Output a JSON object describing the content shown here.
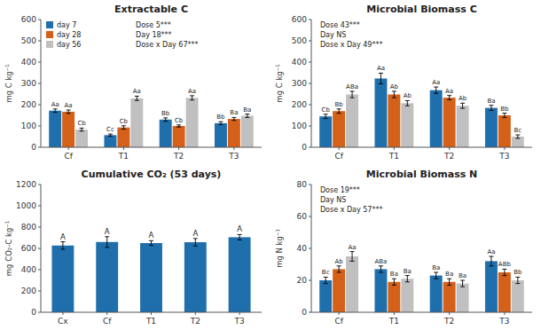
{
  "chart_data": [
    {
      "type": "bar",
      "title": "Extractable C",
      "y_label": "mg C kg⁻¹",
      "categories": [
        "Cf",
        "T1",
        "T2",
        "T3"
      ],
      "ylim": [
        0,
        600
      ],
      "yticks": [
        0,
        100,
        200,
        300,
        400,
        500,
        600
      ],
      "grid": false,
      "legend": "upper left",
      "annotations": [
        "Dose 5***",
        "Day 18***",
        "Dose x Day 67***"
      ],
      "series": [
        {
          "name": "day 7",
          "color": "#1f6fad",
          "values": [
            172,
            57,
            130,
            113
          ],
          "errors": [
            8,
            5,
            8,
            7
          ],
          "annotations": [
            "Aa",
            "Cc",
            "Bb",
            "Bb"
          ]
        },
        {
          "name": "day 28",
          "color": "#d4601a",
          "values": [
            167,
            93,
            100,
            133
          ],
          "errors": [
            8,
            8,
            5,
            7
          ],
          "annotations": [
            "Aa",
            "Cb",
            "Cb",
            "Ba"
          ]
        },
        {
          "name": "day 56",
          "color": "#c0c0c0",
          "values": [
            83,
            230,
            232,
            148
          ],
          "errors": [
            7,
            10,
            10,
            8
          ],
          "annotations": [
            "Cb",
            "Aa",
            "Aa",
            "Ba"
          ]
        }
      ]
    },
    {
      "type": "bar",
      "title": "Microbial Biomass C",
      "y_label": "mg C kg⁻¹",
      "categories": [
        "Cf",
        "T1",
        "T2",
        "T3"
      ],
      "ylim": [
        0,
        600
      ],
      "yticks": [
        0,
        100,
        200,
        300,
        400,
        500,
        600
      ],
      "grid": false,
      "legend": false,
      "annotations": [
        "Dose 43***",
        "Day NS",
        "Dose x Day 49***"
      ],
      "series": [
        {
          "color": "#1f6fad",
          "values": [
            145,
            323,
            268,
            185
          ],
          "errors": [
            10,
            25,
            15,
            12
          ],
          "annotations": [
            "Cb",
            "Aa",
            "Aa",
            "Ba"
          ]
        },
        {
          "color": "#d4601a",
          "values": [
            170,
            248,
            233,
            150
          ],
          "errors": [
            10,
            15,
            10,
            10
          ],
          "annotations": [
            "Bb",
            "Ab",
            "Aa",
            "Bb"
          ]
        },
        {
          "color": "#c0c0c0",
          "values": [
            248,
            207,
            195,
            50
          ],
          "errors": [
            15,
            12,
            12,
            8
          ],
          "annotations": [
            "ABa",
            "Ab",
            "Ab",
            "Bc"
          ]
        }
      ]
    },
    {
      "type": "bar",
      "title": "Cumulative CO₂ (53 days)",
      "y_label": "mg CO₂-C kg⁻¹",
      "categories": [
        "Cx",
        "Cf",
        "T1",
        "T2",
        "T3"
      ],
      "ylim": [
        0,
        1200
      ],
      "yticks": [
        0,
        200,
        400,
        600,
        800,
        1000,
        1200
      ],
      "grid": false,
      "legend": false,
      "color": "#1f6fad",
      "values": [
        627,
        660,
        650,
        658,
        705
      ],
      "errors": [
        35,
        50,
        22,
        35,
        25
      ],
      "annotations": [
        "A",
        "A",
        "A",
        "A",
        "A"
      ]
    },
    {
      "type": "bar",
      "title": "Microbial Biomass N",
      "y_label": "mg N kg⁻¹",
      "categories": [
        "Cf",
        "T1",
        "T2",
        "T3"
      ],
      "ylim": [
        0,
        80
      ],
      "yticks": [
        0,
        20,
        40,
        60,
        80
      ],
      "grid": false,
      "legend": false,
      "annotations": [
        "Dose 19***",
        "Day NS",
        "Dose x Day 57***"
      ],
      "series": [
        {
          "color": "#1f6fad",
          "values": [
            20,
            27,
            23,
            32
          ],
          "errors": [
            2,
            2,
            2,
            3
          ],
          "annotations": [
            "Bc",
            "ABa",
            "Ba",
            "Aa"
          ]
        },
        {
          "color": "#d4601a",
          "values": [
            27,
            19,
            19,
            25
          ],
          "errors": [
            2,
            2,
            2,
            2
          ],
          "annotations": [
            "Ab",
            "Ba",
            "Ba",
            "ABb"
          ]
        },
        {
          "color": "#c0c0c0",
          "values": [
            35,
            21,
            18,
            20
          ],
          "errors": [
            3,
            2,
            2,
            2
          ],
          "annotations": [
            "Aa",
            "Ba",
            "Ba",
            "Bb"
          ]
        }
      ]
    }
  ]
}
